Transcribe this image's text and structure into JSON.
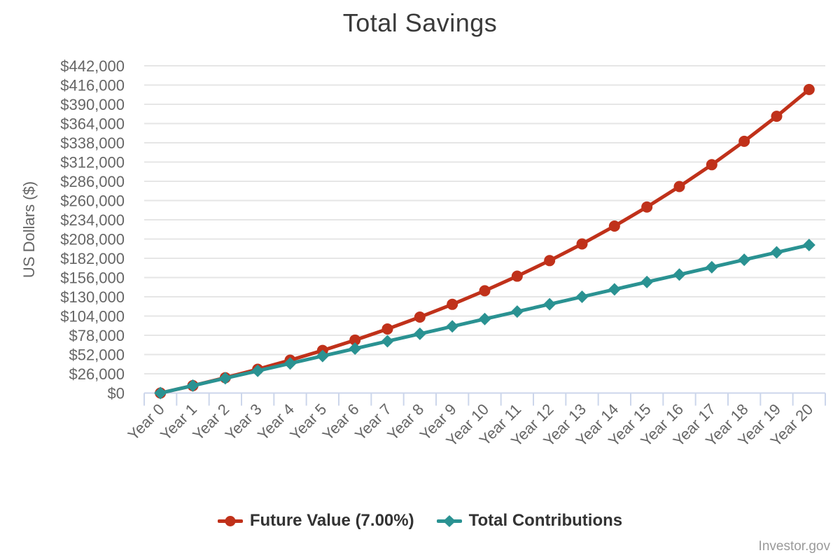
{
  "page": {
    "credit": "Investor.gov"
  },
  "colors": {
    "background": "#ffffff",
    "title": "#3a3a3a",
    "axis_label": "#666666",
    "grid_line": "#e6e6e6",
    "axis_line": "#ccd6eb",
    "legend_text": "#333333",
    "credit": "#9a9a9a"
  },
  "chart_data": {
    "type": "line",
    "title": "Total Savings",
    "ylabel": "US Dollars ($)",
    "xlabel": "",
    "legend_position": "bottom",
    "grid": true,
    "ylim": [
      0,
      442000
    ],
    "y_tick_interval": 26000,
    "y_tick_values": [
      0,
      26000,
      52000,
      78000,
      104000,
      130000,
      156000,
      182000,
      208000,
      234000,
      260000,
      286000,
      312000,
      338000,
      364000,
      390000,
      416000,
      442000
    ],
    "y_tick_labels": [
      "$0",
      "$26,000",
      "$52,000",
      "$78,000",
      "$104,000",
      "$130,000",
      "$156,000",
      "$182,000",
      "$208,000",
      "$234,000",
      "$260,000",
      "$286,000",
      "$312,000",
      "$338,000",
      "$364,000",
      "$390,000",
      "$416,000",
      "$442,000"
    ],
    "categories": [
      "Year 0",
      "Year 1",
      "Year 2",
      "Year 3",
      "Year 4",
      "Year 5",
      "Year 6",
      "Year 7",
      "Year 8",
      "Year 9",
      "Year 10",
      "Year 11",
      "Year 12",
      "Year 13",
      "Year 14",
      "Year 15",
      "Year 16",
      "Year 17",
      "Year 18",
      "Year 19",
      "Year 20"
    ],
    "series": [
      {
        "id": "future-value",
        "name": "Future Value (7.00%)",
        "color": "#c0311a",
        "marker": "circle",
        "values": [
          0,
          10000,
          20700,
          32149,
          44399,
          57507,
          71533,
          86540,
          102598,
          119780,
          138164,
          157836,
          178885,
          201406,
          225505,
          251290,
          278881,
          308402,
          339990,
          373790,
          409955
        ]
      },
      {
        "id": "total-contributions",
        "name": "Total Contributions",
        "color": "#2a9292",
        "marker": "diamond",
        "values": [
          0,
          10000,
          20000,
          30000,
          40000,
          50000,
          60000,
          70000,
          80000,
          90000,
          100000,
          110000,
          120000,
          130000,
          140000,
          150000,
          160000,
          170000,
          180000,
          190000,
          200000
        ]
      }
    ]
  }
}
